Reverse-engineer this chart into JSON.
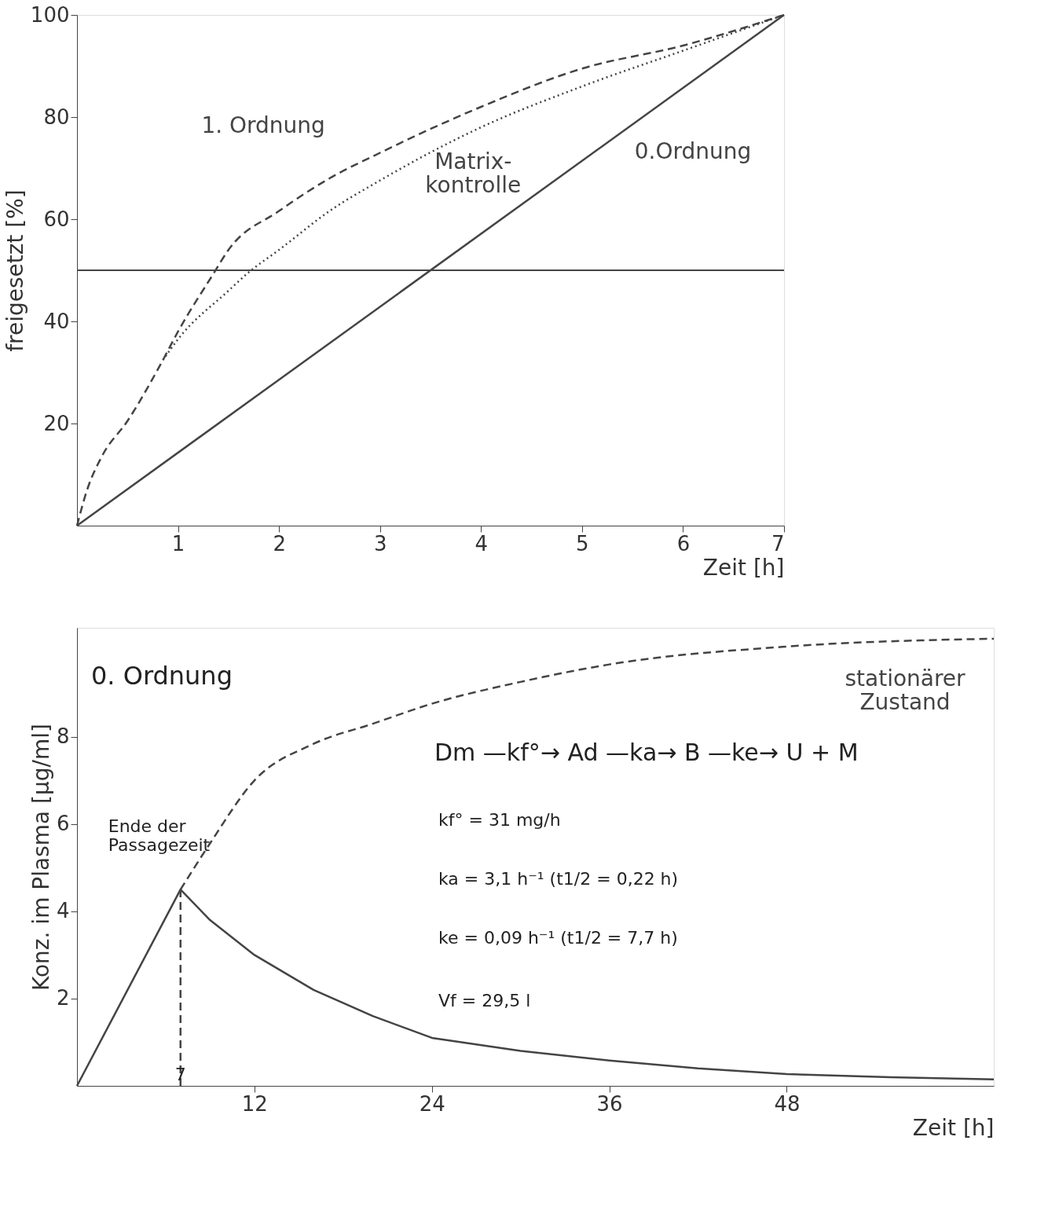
{
  "chart_data": [
    {
      "type": "line",
      "xlabel": "Zeit [h]",
      "ylabel": "freigesetzt [%]",
      "xlim": [
        0,
        7
      ],
      "ylim": [
        0,
        100
      ],
      "xticks": [
        1,
        2,
        3,
        4,
        5,
        6,
        7
      ],
      "yticks": [
        20,
        40,
        60,
        80,
        100
      ],
      "grid": false,
      "ref_lines": [
        {
          "axis": "y",
          "value": 50,
          "color": "#444444",
          "line_style": "solid"
        }
      ],
      "series": [
        {
          "name": "1. Ordnung",
          "color": "#444444",
          "line_style": "dashed",
          "x": [
            0,
            0.1,
            0.25,
            0.5,
            0.85,
            1,
            1.35,
            1.5,
            2,
            2.5,
            3,
            4,
            5,
            6,
            7
          ],
          "values": [
            0,
            7,
            13.7,
            20.5,
            32.4,
            38,
            49.3,
            54,
            61.6,
            68,
            73,
            82,
            89.5,
            94,
            100
          ]
        },
        {
          "name": "Matrix- kontrolle",
          "color": "#444444",
          "line_style": "dotted",
          "x": [
            0.85,
            1,
            1.5,
            1.7,
            2,
            2.5,
            3,
            4,
            5,
            6,
            7
          ],
          "values": [
            32.4,
            36.5,
            46,
            49.6,
            54,
            61.6,
            67.6,
            78,
            86,
            93,
            100
          ]
        },
        {
          "name": "0.Ordnung",
          "color": "#444444",
          "line_style": "solid",
          "x": [
            0,
            7
          ],
          "values": [
            0,
            100
          ]
        }
      ]
    },
    {
      "type": "line",
      "xlabel": "Zeit [h]",
      "ylabel": "Konz. im Plasma [µg/ml]",
      "xlim": [
        0,
        62
      ],
      "ylim": [
        0,
        10.5
      ],
      "xticks": [
        12,
        24,
        36,
        48
      ],
      "yticks": [
        2,
        4,
        6,
        8
      ],
      "grid": false,
      "annotations": [
        "0. Ordnung",
        "Dm —kf°→ Ad —ka→ B —ke→ U + M",
        "kf° = 31 mg/h",
        "ka = 3,1 h⁻¹ (t1/2 = 0,22 h)",
        "ke = 0,09 h⁻¹ (t1/2 = 7,7 h)",
        "Vf = 29,5 l",
        {
          "text": "Ende der Passagezeit",
          "x": 7,
          "y": 4.5
        },
        {
          "text": "7",
          "x": 7,
          "y": 0
        }
      ],
      "series": [
        {
          "color": "#444444",
          "line_style": "solid",
          "x": [
            0,
            7,
            9,
            12,
            16,
            20,
            24,
            30,
            36,
            42,
            48,
            55,
            62
          ],
          "values": [
            0,
            4.5,
            3.8,
            3.0,
            2.2,
            1.6,
            1.1,
            0.8,
            0.58,
            0.4,
            0.27,
            0.2,
            0.15
          ]
        },
        {
          "name": "stationärer Zustand",
          "color": "#444444",
          "line_style": "dashed",
          "x": [
            7,
            9,
            12,
            16,
            20,
            24,
            30,
            36,
            48,
            62
          ],
          "values": [
            4.5,
            5.56,
            7.0,
            7.84,
            8.3,
            8.76,
            9.26,
            9.66,
            10.07,
            10.25
          ]
        },
        {
          "color": "#444444",
          "line_style": "dashed",
          "x": [
            7,
            7
          ],
          "values": [
            0,
            4.5
          ]
        }
      ]
    }
  ]
}
